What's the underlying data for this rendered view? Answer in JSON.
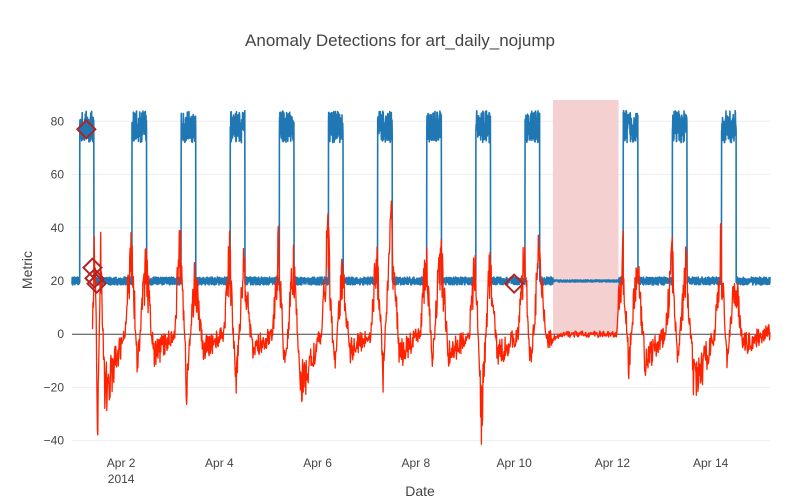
{
  "chart_data": {
    "type": "line",
    "title": "Anomaly Detections for art_daily_nojump",
    "xlabel": "Date",
    "ylabel": "Metric",
    "x_range": [
      "2014-04-01T00:00",
      "2014-04-15T05:00"
    ],
    "ylim": [
      -42,
      88
    ],
    "x_ticks": [
      {
        "date": "2014-04-02",
        "label": "Apr 2",
        "sublabel": "2014"
      },
      {
        "date": "2014-04-04",
        "label": "Apr 4",
        "sublabel": ""
      },
      {
        "date": "2014-04-06",
        "label": "Apr 6",
        "sublabel": ""
      },
      {
        "date": "2014-04-08",
        "label": "Apr 8",
        "sublabel": ""
      },
      {
        "date": "2014-04-10",
        "label": "Apr 10",
        "sublabel": ""
      },
      {
        "date": "2014-04-12",
        "label": "Apr 12",
        "sublabel": ""
      },
      {
        "date": "2014-04-14",
        "label": "Apr 14",
        "sublabel": ""
      }
    ],
    "y_ticks": [
      {
        "value": 80,
        "label": "80"
      },
      {
        "value": 60,
        "label": "60"
      },
      {
        "value": 40,
        "label": "40"
      },
      {
        "value": 20,
        "label": "20"
      },
      {
        "value": 0,
        "label": "0"
      },
      {
        "value": -20,
        "label": "−20"
      },
      {
        "value": -40,
        "label": "−40"
      }
    ],
    "grid": true,
    "legend": "none",
    "highlight_region": {
      "start": "2014-04-10T19:00",
      "end": "2014-04-12T03:00",
      "color": "#f4d0d0"
    },
    "series": [
      {
        "role": "metric",
        "color": "#1f77b4",
        "baseline": 20,
        "high": 78,
        "cycle_starts": [
          "2014-04-01T03:50",
          "2014-04-02T05:20",
          "2014-04-03T05:20",
          "2014-04-04T05:20",
          "2014-04-05T05:20",
          "2014-04-06T05:20",
          "2014-04-07T05:20",
          "2014-04-08T05:20",
          "2014-04-09T05:20",
          "2014-04-10T05:20",
          "2014-04-11T05:20",
          "2014-04-12T05:20",
          "2014-04-13T05:20",
          "2014-04-14T05:20"
        ],
        "cycle_ends": [
          "2014-04-01T10:45",
          "2014-04-02T12:30",
          "2014-04-03T12:30",
          "2014-04-04T12:30",
          "2014-04-05T12:30",
          "2014-04-06T12:30",
          "2014-04-07T12:30",
          "2014-04-08T12:30",
          "2014-04-09T12:30",
          "2014-04-10T12:30",
          "2014-04-10T19:00",
          "2014-04-12T12:30",
          "2014-04-13T12:30",
          "2014-04-14T12:30"
        ],
        "flat_period": [
          "2014-04-10T19:00",
          "2014-04-12T03:00"
        ]
      },
      {
        "role": "residual",
        "color": "#ff2200",
        "x": [
          "2014-04-01T10:00",
          "2014-04-01T11:00",
          "2014-04-01T12:30",
          "2014-04-01T14:00",
          "2014-04-01T16:00",
          "2014-04-02T02:00",
          "2014-04-02T05:00",
          "2014-04-02T08:00",
          "2014-04-02T12:00",
          "2014-04-02T16:00",
          "2014-04-03T02:00",
          "2014-04-03T05:00",
          "2014-04-03T08:00",
          "2014-04-03T12:00",
          "2014-04-03T16:00",
          "2014-04-04T02:00",
          "2014-04-04T05:00",
          "2014-04-04T08:00",
          "2014-04-04T12:00",
          "2014-04-04T16:00",
          "2014-04-05T02:00",
          "2014-04-05T05:00",
          "2014-04-05T08:00",
          "2014-04-05T12:00",
          "2014-04-05T16:00",
          "2014-04-06T02:00",
          "2014-04-06T05:00",
          "2014-04-06T08:00",
          "2014-04-06T12:00",
          "2014-04-06T16:00",
          "2014-04-07T02:00",
          "2014-04-07T05:00",
          "2014-04-07T08:00",
          "2014-04-07T12:00",
          "2014-04-07T16:00",
          "2014-04-08T02:00",
          "2014-04-08T05:00",
          "2014-04-08T08:00",
          "2014-04-08T12:00",
          "2014-04-08T16:00",
          "2014-04-09T02:00",
          "2014-04-09T05:00",
          "2014-04-09T08:00",
          "2014-04-09T12:00",
          "2014-04-09T16:00",
          "2014-04-10T02:00",
          "2014-04-10T05:00",
          "2014-04-10T08:00",
          "2014-04-10T12:00",
          "2014-04-10T16:00",
          "2014-04-11T02:00",
          "2014-04-11T12:00",
          "2014-04-12T02:00",
          "2014-04-12T05:00",
          "2014-04-12T08:00",
          "2014-04-12T12:00",
          "2014-04-12T16:00",
          "2014-04-13T02:00",
          "2014-04-13T05:00",
          "2014-04-13T08:00",
          "2014-04-13T12:00",
          "2014-04-13T16:00",
          "2014-04-14T02:00",
          "2014-04-14T05:00",
          "2014-04-14T08:00",
          "2014-04-14T12:00",
          "2014-04-14T16:00",
          "2014-04-15T02:00",
          "2014-04-15T05:00"
        ],
        "y": [
          0,
          42,
          -32,
          30,
          -22,
          0,
          36,
          -12,
          26,
          -8,
          0,
          36,
          -20,
          22,
          -6,
          0,
          28,
          -18,
          28,
          -6,
          0,
          30,
          -14,
          26,
          -20,
          0,
          38,
          -14,
          22,
          -6,
          0,
          30,
          -14,
          40,
          -8,
          0,
          28,
          -10,
          30,
          -8,
          0,
          26,
          -30,
          24,
          -8,
          0,
          30,
          -12,
          28,
          -2,
          0,
          0,
          0,
          30,
          -12,
          26,
          -10,
          0,
          28,
          -8,
          24,
          -20,
          0,
          30,
          -10,
          20,
          -4,
          0,
          1
        ]
      }
    ],
    "anomaly_markers": [
      {
        "x": "2014-04-01T07:00",
        "y": 77
      },
      {
        "x": "2014-04-01T10:00",
        "y": 25
      },
      {
        "x": "2014-04-01T11:00",
        "y": 21
      },
      {
        "x": "2014-04-01T12:00",
        "y": 19
      },
      {
        "x": "2014-04-10T00:00",
        "y": 19
      }
    ],
    "marker_color": "#b22222"
  }
}
